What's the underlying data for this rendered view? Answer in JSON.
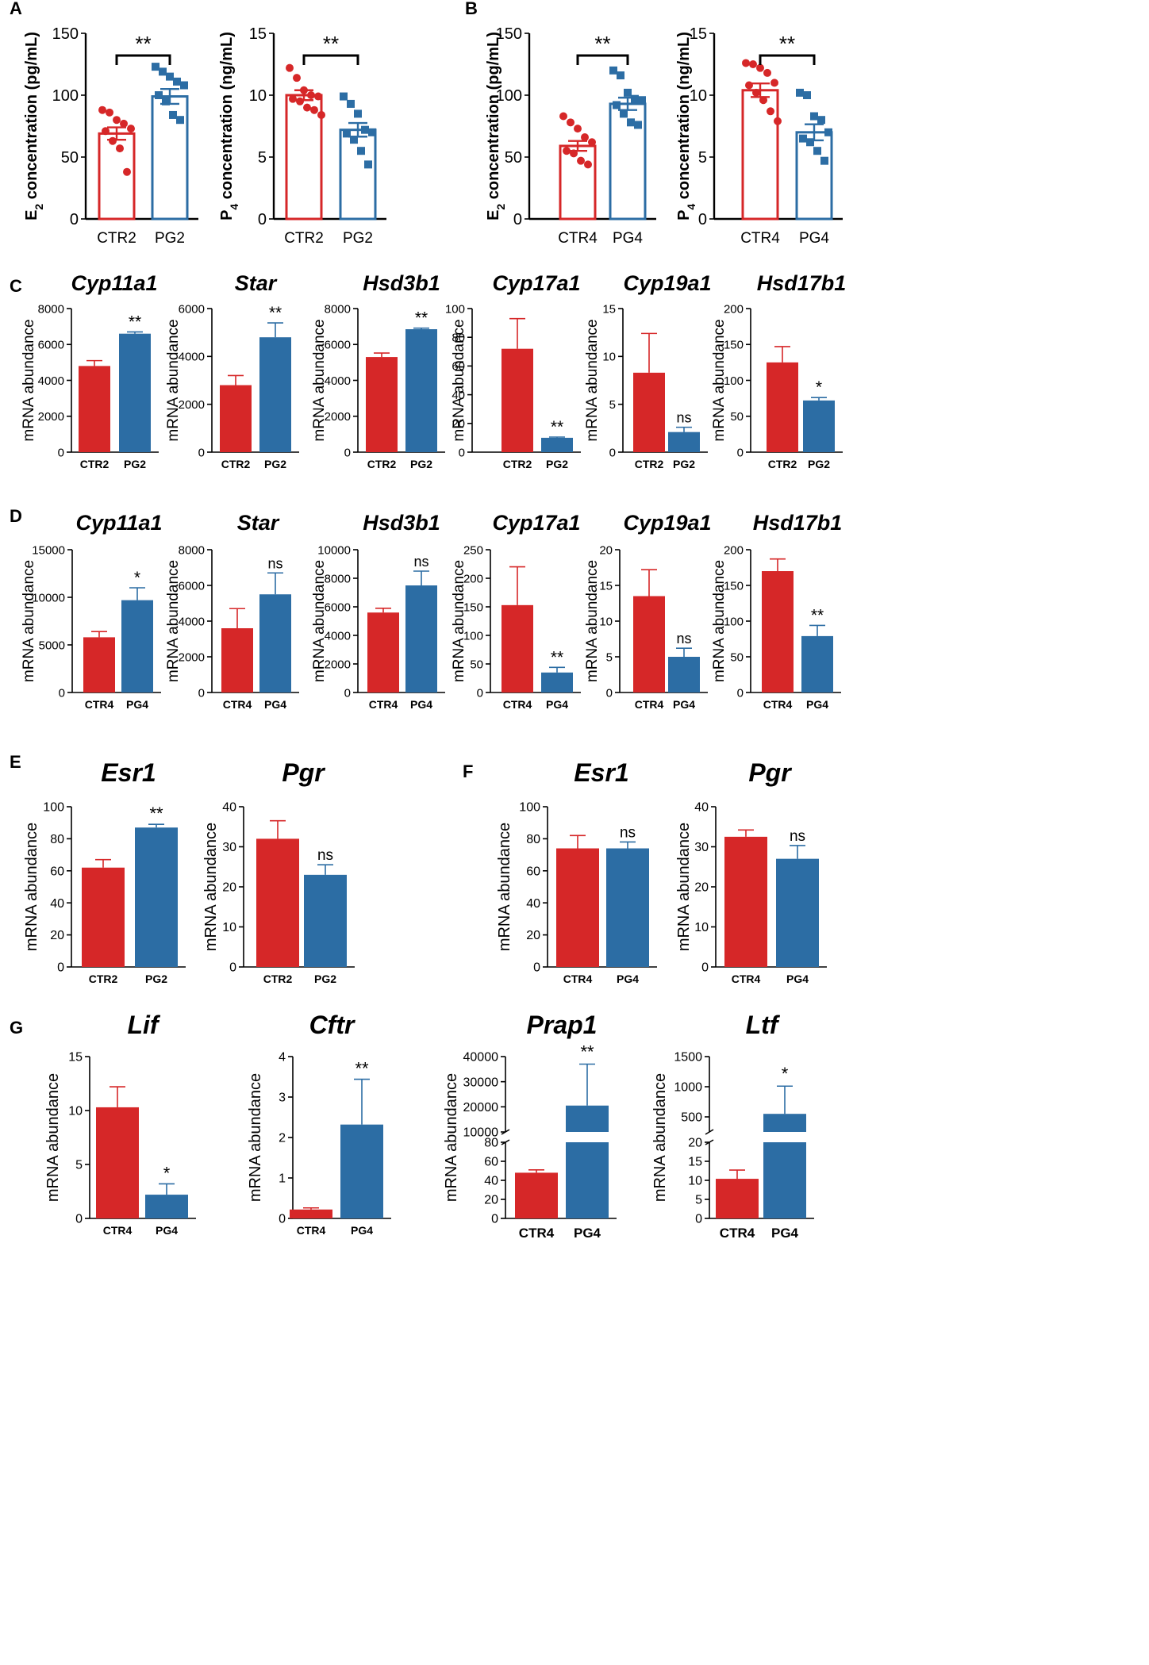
{
  "colors": {
    "ctr": "#d62728",
    "pg": "#2c6da4",
    "axis": "#000000"
  },
  "chart_data": [
    {
      "id": "A1",
      "panel_label": "A",
      "type": "bar",
      "categories": [
        "CTR2",
        "PG2"
      ],
      "values": [
        69,
        99
      ],
      "errors": [
        5,
        6
      ],
      "points": [
        [
          88,
          86,
          80,
          77,
          73,
          71,
          63,
          57,
          38
        ],
        [
          123,
          119,
          115,
          111,
          108,
          100,
          95,
          84,
          80
        ]
      ],
      "ylabel_prefix": "E",
      "ylabel_sub": "2",
      "ylabel_suffix": " concentration (pg/mL)",
      "ylim": [
        0,
        150
      ],
      "yticks": [
        0,
        50,
        100,
        150
      ],
      "sig": "**",
      "sig_bracket": true
    },
    {
      "id": "A2",
      "type": "bar",
      "categories": [
        "CTR2",
        "PG2"
      ],
      "values": [
        10,
        7.2
      ],
      "errors": [
        0.4,
        0.55
      ],
      "points": [
        [
          12.2,
          11.4,
          10.4,
          10,
          9.9,
          9.7,
          9.5,
          9,
          8.8,
          8.4
        ],
        [
          9.9,
          9.3,
          8.5,
          7.2,
          7,
          6.9,
          6.4,
          5.5,
          4.4
        ]
      ],
      "ylabel_prefix": "P",
      "ylabel_sub": "4",
      "ylabel_suffix": " concentration (ng/mL)",
      "ylim": [
        0,
        15
      ],
      "yticks": [
        0,
        5,
        10,
        15
      ],
      "sig": "**",
      "sig_bracket": true
    },
    {
      "id": "B1",
      "panel_label": "B",
      "type": "bar",
      "categories": [
        "CTR4",
        "PG4"
      ],
      "values": [
        59,
        93
      ],
      "errors": [
        4,
        5
      ],
      "points": [
        [
          83,
          78,
          73,
          66,
          62,
          55,
          53,
          47,
          44
        ],
        [
          120,
          116,
          102,
          97,
          96,
          92,
          85,
          78,
          76
        ]
      ],
      "ylabel_prefix": "E",
      "ylabel_sub": "2",
      "ylabel_suffix": " concentration (pg/mL)",
      "ylim": [
        0,
        150
      ],
      "yticks": [
        0,
        50,
        100,
        150
      ],
      "sig": "**",
      "sig_bracket": true
    },
    {
      "id": "B2",
      "type": "bar",
      "categories": [
        "CTR4",
        "PG4"
      ],
      "values": [
        10.4,
        7
      ],
      "errors": [
        0.55,
        0.65
      ],
      "points": [
        [
          12.6,
          12.5,
          12.2,
          11.8,
          11,
          10.8,
          10.2,
          9.6,
          8.7,
          7.9
        ],
        [
          10.2,
          10,
          8.3,
          8,
          7,
          6.5,
          6.2,
          5.5,
          4.7
        ]
      ],
      "ylabel_prefix": "P",
      "ylabel_sub": "4",
      "ylabel_suffix": " concentration (ng/mL)",
      "ylim": [
        0,
        15
      ],
      "yticks": [
        0,
        5,
        10,
        15
      ],
      "sig": "**",
      "sig_bracket": true
    },
    {
      "id": "C1",
      "panel_label": "C",
      "type": "bar",
      "title": "Cyp11a1",
      "categories": [
        "CTR2",
        "PG2"
      ],
      "values": [
        4800,
        6600
      ],
      "errors": [
        300,
        100
      ],
      "ylabel": "mRNA abundance",
      "ylim": [
        0,
        8000
      ],
      "yticks": [
        0,
        2000,
        4000,
        6000,
        8000
      ],
      "sig": "**"
    },
    {
      "id": "C2",
      "type": "bar",
      "title": "Star",
      "categories": [
        "CTR2",
        "PG2"
      ],
      "values": [
        2800,
        4800
      ],
      "errors": [
        400,
        600
      ],
      "ylabel": "mRNA abundance",
      "ylim": [
        0,
        6000
      ],
      "yticks": [
        0,
        2000,
        4000,
        6000
      ],
      "sig": "**"
    },
    {
      "id": "C3",
      "type": "bar",
      "title": "Hsd3b1",
      "categories": [
        "CTR2",
        "PG2"
      ],
      "values": [
        5300,
        6850
      ],
      "errors": [
        220,
        60
      ],
      "ylabel": "mRNA abundance",
      "ylim": [
        0,
        8000
      ],
      "yticks": [
        0,
        2000,
        4000,
        6000,
        8000
      ],
      "sig": "**"
    },
    {
      "id": "C4",
      "type": "bar",
      "title": "Cyp17a1",
      "categories": [
        "CTR2",
        "PG2"
      ],
      "values": [
        72,
        10
      ],
      "errors": [
        21,
        0.5
      ],
      "ylabel": "mRNA abundance",
      "ylim": [
        0,
        100
      ],
      "yticks": [
        0,
        20,
        40,
        60,
        80,
        100
      ],
      "sig": "**"
    },
    {
      "id": "C5",
      "type": "bar",
      "title": "Cyp19a1",
      "categories": [
        "CTR2",
        "PG2"
      ],
      "values": [
        8.3,
        2.1
      ],
      "errors": [
        4.1,
        0.5
      ],
      "ylabel": "mRNA abundance",
      "ylim": [
        0,
        15
      ],
      "yticks": [
        0,
        5,
        10,
        15
      ],
      "sig": "ns"
    },
    {
      "id": "C6",
      "type": "bar",
      "title": "Hsd17b1",
      "categories": [
        "CTR2",
        "PG2"
      ],
      "values": [
        125,
        72
      ],
      "errors": [
        22,
        4
      ],
      "ylabel": "mRNA abundance",
      "ylim": [
        0,
        200
      ],
      "yticks": [
        0,
        50,
        100,
        150,
        200
      ],
      "sig": "*"
    },
    {
      "id": "D1",
      "panel_label": "D",
      "type": "bar",
      "title": "Cyp11a1",
      "categories": [
        "CTR4",
        "PG4"
      ],
      "values": [
        5800,
        9700
      ],
      "errors": [
        600,
        1300
      ],
      "ylabel": "mRNA abundance",
      "ylim": [
        0,
        15000
      ],
      "yticks": [
        0,
        5000,
        10000,
        15000
      ],
      "sig": "*"
    },
    {
      "id": "D2",
      "type": "bar",
      "title": "Star",
      "categories": [
        "CTR4",
        "PG4"
      ],
      "values": [
        3600,
        5500
      ],
      "errors": [
        1100,
        1200
      ],
      "ylabel": "mRNA abundance",
      "ylim": [
        0,
        8000
      ],
      "yticks": [
        0,
        2000,
        4000,
        6000,
        8000
      ],
      "sig": "ns"
    },
    {
      "id": "D3",
      "type": "bar",
      "title": "Hsd3b1",
      "categories": [
        "CTR4",
        "PG4"
      ],
      "values": [
        5600,
        7500
      ],
      "errors": [
        300,
        1000
      ],
      "ylabel": "mRNA abundance",
      "ylim": [
        0,
        10000
      ],
      "yticks": [
        0,
        2000,
        4000,
        6000,
        8000,
        10000
      ],
      "sig": "ns"
    },
    {
      "id": "D4",
      "type": "bar",
      "title": "Cyp17a1",
      "categories": [
        "CTR4",
        "PG4"
      ],
      "values": [
        153,
        35
      ],
      "errors": [
        67,
        9
      ],
      "ylabel": "mRNA abundance",
      "ylim": [
        0,
        250
      ],
      "yticks": [
        0,
        50,
        100,
        150,
        200,
        250
      ],
      "sig": "**"
    },
    {
      "id": "D5",
      "type": "bar",
      "title": "Cyp19a1",
      "categories": [
        "CTR4",
        "PG4"
      ],
      "values": [
        13.5,
        5
      ],
      "errors": [
        3.7,
        1.2
      ],
      "ylabel": "mRNA abundance",
      "ylim": [
        0,
        20
      ],
      "yticks": [
        0,
        5,
        10,
        15,
        20
      ],
      "sig": "ns"
    },
    {
      "id": "D6",
      "type": "bar",
      "title": "Hsd17b1",
      "categories": [
        "CTR4",
        "PG4"
      ],
      "values": [
        170,
        79
      ],
      "errors": [
        17,
        15
      ],
      "ylabel": "mRNA abundance",
      "ylim": [
        0,
        200
      ],
      "yticks": [
        0,
        50,
        100,
        150,
        200
      ],
      "sig": "**"
    },
    {
      "id": "E1",
      "panel_label": "E",
      "type": "bar",
      "title": "Esr1",
      "categories": [
        "CTR2",
        "PG2"
      ],
      "values": [
        62,
        87
      ],
      "errors": [
        5,
        2
      ],
      "ylabel": "mRNA abundance",
      "ylim": [
        0,
        100
      ],
      "yticks": [
        0,
        20,
        40,
        60,
        80,
        100
      ],
      "sig": "**"
    },
    {
      "id": "E2",
      "type": "bar",
      "title": "Pgr",
      "categories": [
        "CTR2",
        "PG2"
      ],
      "values": [
        32,
        23
      ],
      "errors": [
        4.5,
        2.5
      ],
      "ylabel": "mRNA abundance",
      "ylim": [
        0,
        40
      ],
      "yticks": [
        0,
        10,
        20,
        30,
        40
      ],
      "sig": "ns"
    },
    {
      "id": "F1",
      "panel_label": "F",
      "type": "bar",
      "title": "Esr1",
      "categories": [
        "CTR4",
        "PG4"
      ],
      "values": [
        74,
        74
      ],
      "errors": [
        8,
        4
      ],
      "ylabel": "mRNA abundance",
      "ylim": [
        0,
        100
      ],
      "yticks": [
        0,
        20,
        40,
        60,
        80,
        100
      ],
      "sig": "ns"
    },
    {
      "id": "F2",
      "type": "bar",
      "title": "Pgr",
      "categories": [
        "CTR4",
        "PG4"
      ],
      "values": [
        32.5,
        27
      ],
      "errors": [
        1.7,
        3.3
      ],
      "ylabel": "mRNA abundance",
      "ylim": [
        0,
        40
      ],
      "yticks": [
        0,
        10,
        20,
        30,
        40
      ],
      "sig": "ns"
    },
    {
      "id": "G1",
      "panel_label": "G",
      "type": "bar",
      "title": "Lif",
      "categories": [
        "CTR4",
        "PG4"
      ],
      "values": [
        10.3,
        2.2
      ],
      "errors": [
        1.9,
        1
      ],
      "ylabel": "mRNA abundance",
      "ylim": [
        0,
        15
      ],
      "yticks": [
        0,
        5,
        10,
        15
      ],
      "sig": "*"
    },
    {
      "id": "G2",
      "type": "bar",
      "title": "Cftr",
      "categories": [
        "CTR4",
        "PG4"
      ],
      "values": [
        0.22,
        2.32
      ],
      "errors": [
        0.04,
        1.12
      ],
      "ylabel": "mRNA abundance",
      "ylim": [
        0,
        4
      ],
      "yticks": [
        0,
        1,
        2,
        3,
        4
      ],
      "sig": "**"
    },
    {
      "id": "G3",
      "type": "bar",
      "title": "Prap1",
      "categories": [
        "CTR4",
        "PG4"
      ],
      "values": [
        48,
        20500
      ],
      "errors": [
        3,
        16500
      ],
      "ylabel": "mRNA abundance",
      "sig": "**",
      "broken": true,
      "lower_range": [
        0,
        80
      ],
      "lower_ticks": [
        0,
        20,
        40,
        60,
        80
      ],
      "upper_range": [
        10000,
        40000
      ],
      "upper_ticks": [
        10000,
        20000,
        30000,
        40000
      ]
    },
    {
      "id": "G4",
      "type": "bar",
      "title": "Ltf",
      "categories": [
        "CTR4",
        "PG4"
      ],
      "values": [
        10.4,
        550
      ],
      "errors": [
        2.3,
        460
      ],
      "ylabel": "mRNA abundance",
      "sig": "*",
      "broken": true,
      "lower_range": [
        0,
        20
      ],
      "lower_ticks": [
        0,
        5,
        10,
        15,
        20
      ],
      "upper_range": [
        250,
        1500
      ],
      "upper_ticks": [
        500,
        1000,
        1500
      ]
    }
  ]
}
